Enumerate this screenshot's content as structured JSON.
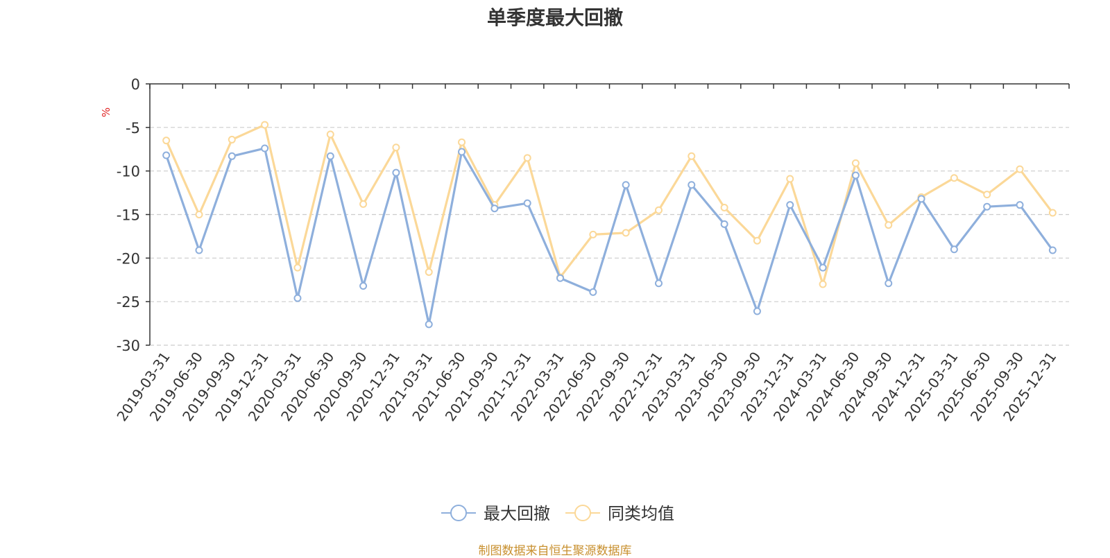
{
  "chart_data": {
    "type": "line",
    "title": "单季度最大回撤",
    "ylabel": "%",
    "ylim": [
      -30,
      0
    ],
    "yticks": [
      0,
      -5,
      -10,
      -15,
      -20,
      -25,
      -30
    ],
    "grid": "horizontal-dashed",
    "legend_position": "bottom-center",
    "categories": [
      "2019-03-31",
      "2019-06-30",
      "2019-09-30",
      "2019-12-31",
      "2020-03-31",
      "2020-06-30",
      "2020-09-30",
      "2020-12-31",
      "2021-03-31",
      "2021-06-30",
      "2021-09-30",
      "2021-12-31",
      "2022-03-31",
      "2022-06-30",
      "2022-09-30",
      "2022-12-31",
      "2023-03-31",
      "2023-06-30",
      "2023-09-30",
      "2023-12-31",
      "2024-03-31",
      "2024-06-30",
      "2024-09-30",
      "2024-12-31",
      "2025-03-31",
      "2025-06-30",
      "2025-09-30",
      "2025-12-31"
    ],
    "series": [
      {
        "name": "最大回撤",
        "color": "#8eafdc",
        "values": [
          -8.2,
          -19.1,
          -8.3,
          -7.4,
          -24.6,
          -8.3,
          -23.2,
          -10.2,
          -27.6,
          -7.8,
          -14.3,
          -13.7,
          -22.3,
          -23.9,
          -11.6,
          -22.9,
          -11.6,
          -16.1,
          -26.1,
          -13.9,
          -21.1,
          -10.5,
          -22.9,
          -13.2,
          -19.0,
          -14.1,
          -13.9,
          -19.1
        ]
      },
      {
        "name": "同类均值",
        "color": "#fbd898",
        "values": [
          -6.5,
          -15.0,
          -6.4,
          -4.7,
          -21.1,
          -5.8,
          -13.8,
          -7.3,
          -21.6,
          -6.7,
          -13.9,
          -8.5,
          -22.2,
          -17.3,
          -17.1,
          -14.5,
          -8.3,
          -14.2,
          -18.0,
          -10.9,
          -23.0,
          -9.1,
          -16.2,
          -13.0,
          -10.8,
          -12.7,
          -9.8,
          -14.8
        ]
      }
    ]
  },
  "colors": {
    "axis": "#333333",
    "grid": "#cccccc",
    "ylabel": "#e02020",
    "source": "#c8902f"
  },
  "source_text": "制图数据来自恒生聚源数据库"
}
